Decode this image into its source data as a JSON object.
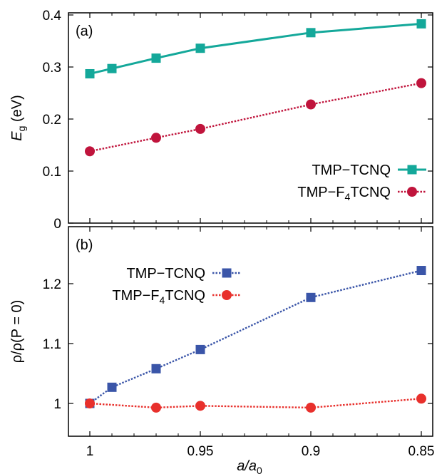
{
  "chart_data": [
    {
      "type": "line",
      "panel_label": "(a)",
      "ylabel": {
        "main": "E",
        "sub": "g",
        "unit": " (eV)"
      },
      "xlabel": "",
      "xlim": [
        1.0,
        0.85
      ],
      "ylim": [
        0,
        0.4
      ],
      "yticks": [
        {
          "v": 0,
          "t": "0"
        },
        {
          "v": 0.1,
          "t": "0.1"
        },
        {
          "v": 0.2,
          "t": "0.2"
        },
        {
          "v": 0.3,
          "t": "0.3"
        },
        {
          "v": 0.4,
          "t": "0.4"
        }
      ],
      "legend_position": "bottom-right",
      "series": [
        {
          "name": "TMP–TCNQ",
          "legend_main": "TMP−TCNQ",
          "legend_sub": "",
          "legend_tail": "",
          "color": "#14a89a",
          "marker": "square",
          "line": "solid",
          "x": [
            1.0,
            0.99,
            0.97,
            0.95,
            0.9,
            0.85
          ],
          "y": [
            0.287,
            0.297,
            0.317,
            0.336,
            0.366,
            0.383
          ]
        },
        {
          "name": "TMP–F4TCNQ",
          "legend_main": "TMP−F",
          "legend_sub": "4",
          "legend_tail": "TCNQ",
          "color": "#c0143c",
          "marker": "circle",
          "line": "dotted",
          "x": [
            1.0,
            0.97,
            0.95,
            0.9,
            0.85
          ],
          "y": [
            0.138,
            0.164,
            0.181,
            0.228,
            0.269
          ]
        }
      ]
    },
    {
      "type": "line",
      "panel_label": "(b)",
      "ylabel": {
        "text": "ρ/ρ(P = 0)"
      },
      "xlabel": {
        "main": "a/a",
        "sub": "0"
      },
      "xlim": [
        1.0,
        0.85
      ],
      "ylim": [
        0.95,
        1.25
      ],
      "xticks": [
        {
          "v": 1.0,
          "t": "1"
        },
        {
          "v": 0.95,
          "t": "0.95"
        },
        {
          "v": 0.9,
          "t": "0.9"
        },
        {
          "v": 0.85,
          "t": "0.85"
        }
      ],
      "yticks": [
        {
          "v": 1.0,
          "t": "1"
        },
        {
          "v": 1.1,
          "t": "1.1"
        },
        {
          "v": 1.2,
          "t": "1.2"
        }
      ],
      "legend_position": "top-left",
      "series": [
        {
          "name": "TMP–TCNQ",
          "legend_main": "TMP−TCNQ",
          "legend_sub": "",
          "legend_tail": "",
          "color": "#3a55a8",
          "marker": "square",
          "line": "dotted",
          "x": [
            1.0,
            0.99,
            0.97,
            0.95,
            0.9,
            0.85
          ],
          "y": [
            1.0,
            1.027,
            1.058,
            1.09,
            1.177,
            1.222
          ]
        },
        {
          "name": "TMP–F4TCNQ",
          "legend_main": "TMP−F",
          "legend_sub": "4",
          "legend_tail": "TCNQ",
          "color": "#e8302c",
          "marker": "circle",
          "line": "dotted",
          "x": [
            1.0,
            0.97,
            0.95,
            0.9,
            0.85
          ],
          "y": [
            1.0,
            0.993,
            0.996,
            0.993,
            1.008
          ]
        }
      ]
    }
  ]
}
